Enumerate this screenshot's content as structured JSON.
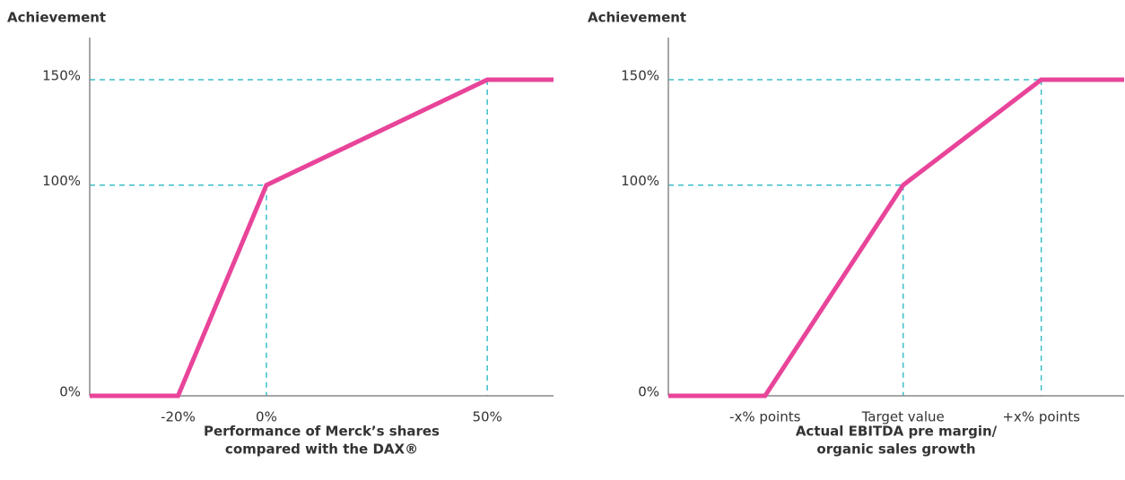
{
  "chart_data": [
    {
      "type": "line",
      "ylabel": "Achievement",
      "xlabel": [
        "Performance of Merck’s shares",
        "compared with the DAX®"
      ],
      "x": [
        -40,
        -20,
        0,
        50,
        65
      ],
      "series": [
        {
          "color": "#e8449a",
          "values": [
            0,
            0,
            100,
            150,
            150
          ]
        }
      ],
      "xlim": [
        -40,
        65
      ],
      "ylim": [
        0,
        170
      ],
      "xticks": [
        {
          "value": -20,
          "label": "-20%"
        },
        {
          "value": 0,
          "label": "0%"
        },
        {
          "value": 50,
          "label": "50%"
        }
      ],
      "yticks": [
        {
          "value": 0,
          "label": "0%"
        },
        {
          "value": 100,
          "label": "100%"
        },
        {
          "value": 150,
          "label": "150%"
        }
      ],
      "guide_color": "#3bbfc8"
    },
    {
      "type": "line",
      "ylabel": "Achievement",
      "xlabel": [
        "Actual EBITDA pre margin/",
        "organic sales growth"
      ],
      "x": [
        -1.7,
        -1,
        0,
        1,
        1.6
      ],
      "series": [
        {
          "color": "#e8449a",
          "values": [
            0,
            0,
            100,
            150,
            150
          ]
        }
      ],
      "xlim": [
        -1.7,
        1.6
      ],
      "ylim": [
        0,
        170
      ],
      "xticks": [
        {
          "value": -1,
          "label": "-x% points"
        },
        {
          "value": 0,
          "label": "Target value"
        },
        {
          "value": 1,
          "label": "+x% points"
        }
      ],
      "yticks": [
        {
          "value": 0,
          "label": "0%"
        },
        {
          "value": 100,
          "label": "100%"
        },
        {
          "value": 150,
          "label": "150%"
        }
      ],
      "guide_color": "#3bbfc8"
    }
  ]
}
